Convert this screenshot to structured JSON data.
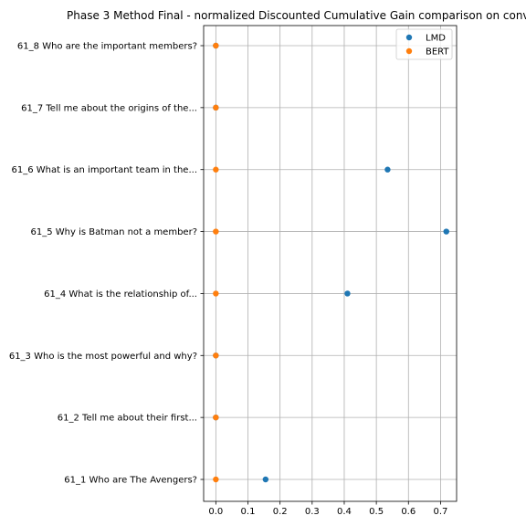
{
  "chart_data": {
    "type": "scatter",
    "title": "Phase 3 Method Final - normalized Discounted Cumulative Gain comparison on conv",
    "xlabel": "",
    "ylabel": "",
    "categories": [
      "61_1 Who are The Avengers?",
      "61_2 Tell me about their first...",
      "61_3 Who is the most powerful and why?",
      "61_4 What is the relationship of...",
      "61_5 Why is Batman not a member?",
      "61_6 What is an important team in the...",
      "61_7 Tell me about the origins of the...",
      "61_8 Who are the important members?"
    ],
    "xticks": [
      "0.0",
      "0.1",
      "0.2",
      "0.3",
      "0.4",
      "0.5",
      "0.6",
      "0.7"
    ],
    "xlim": [
      -0.038,
      0.75
    ],
    "grid": true,
    "legend_position": "top-right",
    "series": [
      {
        "name": "LMD",
        "color": "#1f77b4",
        "values": [
          0.155,
          0.0,
          0.0,
          0.41,
          0.718,
          0.535,
          0.0,
          0.0
        ]
      },
      {
        "name": "BERT",
        "color": "#ff7f0e",
        "values": [
          0.0,
          0.0,
          0.0,
          0.0,
          0.0,
          0.0,
          0.0,
          0.0
        ]
      }
    ]
  }
}
